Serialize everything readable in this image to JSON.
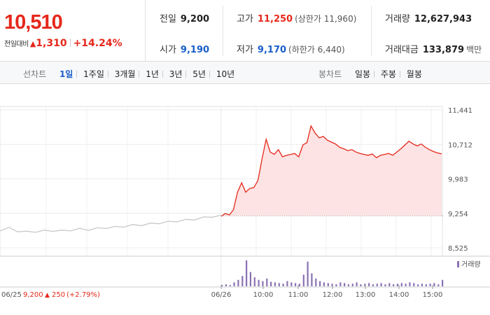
{
  "quote": {
    "price": "10,510",
    "change_label": "전일대비",
    "change_arrow": "▲",
    "change_value": "1,310",
    "change_pct": "+14.24%"
  },
  "stats": {
    "prev_close": {
      "label": "전일",
      "value": "9,200"
    },
    "open": {
      "label": "시가",
      "value": "9,190"
    },
    "high": {
      "label": "고가",
      "value": "11,250",
      "sub": "(상한가 11,960)"
    },
    "low": {
      "label": "저가",
      "value": "9,170",
      "sub": "(하한가 6,440)"
    },
    "volume": {
      "label": "거래량",
      "value": "12,627,943"
    },
    "amount": {
      "label": "거래대금",
      "value": "133,879",
      "unit": "백만"
    }
  },
  "tabs": {
    "line_label": "선차트",
    "line_items": [
      "1일",
      "1주일",
      "3개월",
      "1년",
      "3년",
      "5년",
      "10년"
    ],
    "line_active": 0,
    "candle_label": "봉차트",
    "candle_items": [
      "일봉",
      "주봉",
      "월봉"
    ]
  },
  "colors": {
    "up": "#e5281b",
    "down": "#1a5ec9",
    "volume": "#8a72b3",
    "prev_line": "#c8c8c8"
  },
  "chart_data": {
    "type": "line",
    "y_ticks": [
      "11,441",
      "10,712",
      "9,983",
      "9,254",
      "8,525"
    ],
    "y_tick_values": [
      11441,
      10712,
      9983,
      9254,
      8525
    ],
    "ylim": [
      8525,
      11441
    ],
    "reference_price": 9200,
    "x_ticks": [
      "06/26",
      "10:00",
      "11:00",
      "12:00",
      "13:00",
      "14:00",
      "15:00"
    ],
    "prev_day": {
      "label": "06/25",
      "close": "9,200",
      "arrow": "▲",
      "change": "250",
      "pct": "(+2.79%)",
      "values": [
        8900,
        8940,
        8880,
        8860,
        8870,
        8880,
        8890,
        8880,
        8900,
        8920,
        8910,
        8930,
        8950,
        8960,
        8980,
        9000,
        9010,
        9030,
        9050,
        9070,
        9090,
        9110,
        9130,
        9160,
        9190,
        9200
      ]
    },
    "today": {
      "values": [
        9190,
        9250,
        9220,
        9330,
        9700,
        9900,
        9700,
        9780,
        9800,
        9950,
        10400,
        10820,
        10550,
        10500,
        10600,
        10450,
        10480,
        10500,
        10520,
        10450,
        10700,
        10750,
        11100,
        10950,
        10850,
        10880,
        10800,
        10760,
        10720,
        10650,
        10620,
        10580,
        10600,
        10550,
        10520,
        10500,
        10480,
        10510,
        10430,
        10480,
        10500,
        10520,
        10480,
        10550,
        10620,
        10700,
        10780,
        10720,
        10680,
        10720,
        10650,
        10600,
        10560,
        10530,
        10510
      ]
    },
    "volume_legend": "거래량",
    "volume_values": [
      2,
      3,
      2,
      6,
      10,
      16,
      40,
      22,
      14,
      10,
      8,
      12,
      7,
      6,
      5,
      4,
      8,
      6,
      5,
      4,
      18,
      38,
      20,
      12,
      8,
      6,
      5,
      4,
      3,
      6,
      5,
      3,
      4,
      6,
      3,
      4,
      5,
      3,
      4,
      5,
      3,
      5,
      3,
      4,
      5,
      4,
      6,
      5,
      3,
      4,
      3,
      4,
      5,
      3,
      10
    ]
  }
}
